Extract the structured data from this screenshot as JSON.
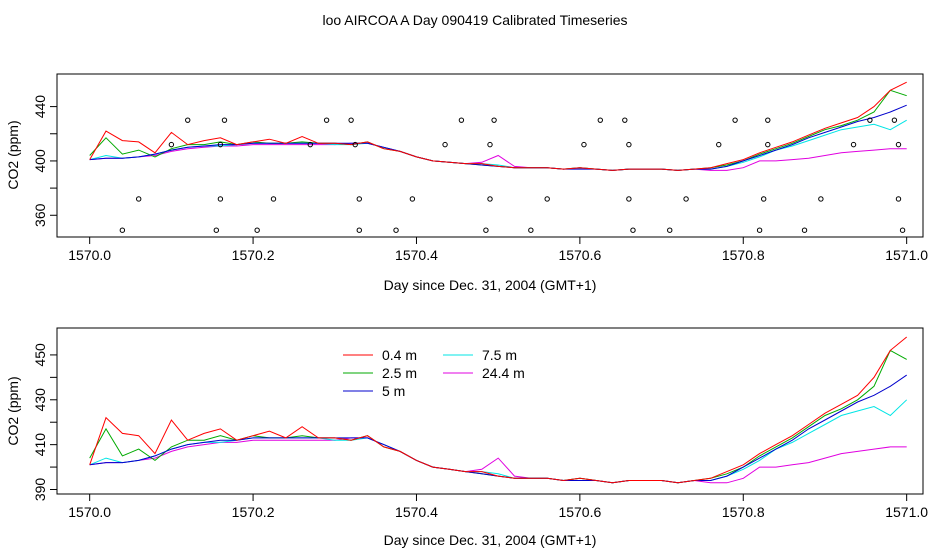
{
  "title": "loo AIRCOA A  Day 090419  Calibrated Timeseries",
  "colors": {
    "0.4 m": "#ff0000",
    "2.5 m": "#00aa00",
    "5 m": "#0000cc",
    "7.5 m": "#00e5e5",
    "24.4 m": "#e000e0",
    "points": "#000000"
  },
  "chart_data": [
    {
      "type": "line",
      "xlabel": "Day since Dec. 31, 2004 (GMT+1)",
      "ylabel": "CO2 (ppm)",
      "xlim": [
        1569.96,
        1571.02
      ],
      "ylim": [
        344,
        464
      ],
      "xticks": [
        1570.0,
        1570.2,
        1570.4,
        1570.6,
        1570.8,
        1571.0
      ],
      "xtick_labels": [
        "1570.0",
        "1570.2",
        "1570.4",
        "1570.6",
        "1570.8",
        "1571.0"
      ],
      "yticks": [
        360,
        400,
        440
      ],
      "ytick_labels": [
        "360",
        "400",
        "440"
      ],
      "yticks_minor": [
        380,
        420
      ],
      "x": [
        1570.0,
        1570.02,
        1570.04,
        1570.06,
        1570.08,
        1570.1,
        1570.12,
        1570.14,
        1570.16,
        1570.18,
        1570.2,
        1570.22,
        1570.24,
        1570.26,
        1570.28,
        1570.3,
        1570.32,
        1570.34,
        1570.36,
        1570.38,
        1570.4,
        1570.42,
        1570.44,
        1570.46,
        1570.48,
        1570.5,
        1570.52,
        1570.54,
        1570.56,
        1570.58,
        1570.6,
        1570.62,
        1570.64,
        1570.66,
        1570.68,
        1570.7,
        1570.72,
        1570.74,
        1570.76,
        1570.78,
        1570.8,
        1570.82,
        1570.84,
        1570.86,
        1570.88,
        1570.9,
        1570.92,
        1570.94,
        1570.96,
        1570.98,
        1571.0
      ],
      "series": [
        {
          "name": "0.4 m",
          "values": [
            401,
            422,
            415,
            414,
            406,
            421,
            412,
            415,
            417,
            412,
            414,
            416,
            413,
            418,
            413,
            413,
            412,
            414,
            409,
            407,
            403,
            400,
            399,
            398,
            398,
            396,
            395,
            395,
            395,
            394,
            395,
            394,
            393,
            394,
            394,
            394,
            393,
            394,
            395,
            398,
            401,
            406,
            410,
            414,
            419,
            424,
            428,
            432,
            440,
            452,
            458
          ]
        },
        {
          "name": "2.5 m",
          "values": [
            404,
            417,
            405,
            408,
            403,
            409,
            412,
            412,
            414,
            412,
            414,
            413,
            413,
            414,
            413,
            413,
            412,
            414,
            409,
            407,
            403,
            400,
            399,
            398,
            397,
            396,
            395,
            395,
            395,
            394,
            395,
            394,
            393,
            394,
            394,
            394,
            393,
            394,
            395,
            397,
            400,
            405,
            409,
            413,
            418,
            423,
            426,
            430,
            436,
            452,
            448
          ]
        },
        {
          "name": "5 m",
          "values": [
            401,
            402,
            402,
            403,
            405,
            408,
            410,
            411,
            412,
            412,
            413,
            413,
            413,
            413,
            413,
            413,
            413,
            413,
            410,
            407,
            403,
            400,
            399,
            398,
            397,
            396,
            395,
            395,
            395,
            394,
            394,
            394,
            393,
            394,
            394,
            394,
            393,
            394,
            394,
            396,
            400,
            404,
            408,
            412,
            417,
            421,
            425,
            429,
            432,
            436,
            441
          ]
        },
        {
          "name": "7.5 m",
          "values": [
            401,
            404,
            402,
            403,
            405,
            408,
            410,
            411,
            411,
            412,
            413,
            413,
            413,
            413,
            413,
            412,
            412,
            413,
            410,
            407,
            403,
            400,
            399,
            398,
            398,
            397,
            395,
            395,
            395,
            394,
            395,
            394,
            393,
            394,
            394,
            394,
            393,
            394,
            394,
            396,
            399,
            403,
            408,
            411,
            415,
            419,
            423,
            425,
            427,
            423,
            430
          ]
        },
        {
          "name": "24.4 m",
          "values": [
            401,
            402,
            402,
            403,
            404,
            407,
            409,
            410,
            411,
            411,
            412,
            412,
            412,
            412,
            412,
            412,
            413,
            413,
            410,
            407,
            403,
            400,
            399,
            398,
            399,
            404,
            396,
            395,
            395,
            394,
            395,
            394,
            393,
            394,
            394,
            394,
            393,
            394,
            393,
            393,
            395,
            400,
            400,
            401,
            402,
            404,
            406,
            407,
            408,
            409,
            409
          ]
        }
      ],
      "points": {
        "x": [
          1570.04,
          1570.06,
          1570.1,
          1570.12,
          1570.155,
          1570.16,
          1570.16,
          1570.165,
          1570.205,
          1570.225,
          1570.27,
          1570.29,
          1570.32,
          1570.325,
          1570.33,
          1570.33,
          1570.375,
          1570.395,
          1570.435,
          1570.455,
          1570.485,
          1570.49,
          1570.49,
          1570.495,
          1570.54,
          1570.56,
          1570.605,
          1570.625,
          1570.655,
          1570.66,
          1570.66,
          1570.665,
          1570.71,
          1570.73,
          1570.77,
          1570.79,
          1570.82,
          1570.825,
          1570.83,
          1570.83,
          1570.875,
          1570.895,
          1570.935,
          1570.955,
          1570.985,
          1570.99,
          1570.99,
          1570.995
        ],
        "y": [
          349,
          372,
          412,
          430,
          349,
          372,
          412,
          430,
          349,
          372,
          412,
          430,
          430,
          412,
          372,
          349,
          349,
          372,
          412,
          430,
          349,
          372,
          412,
          430,
          349,
          372,
          412,
          430,
          430,
          412,
          372,
          349,
          349,
          372,
          412,
          430,
          349,
          372,
          412,
          430,
          349,
          372,
          412,
          430,
          430,
          412,
          372,
          349
        ]
      }
    },
    {
      "type": "line",
      "xlabel": "Day since Dec. 31, 2004 (GMT+1)",
      "ylabel": "CO2 (ppm)",
      "xlim": [
        1569.96,
        1571.02
      ],
      "ylim": [
        388,
        462
      ],
      "xticks": [
        1570.0,
        1570.2,
        1570.4,
        1570.6,
        1570.8,
        1571.0
      ],
      "xtick_labels": [
        "1570.0",
        "1570.2",
        "1570.4",
        "1570.6",
        "1570.8",
        "1571.0"
      ],
      "yticks": [
        390,
        410,
        430,
        450
      ],
      "ytick_labels": [
        "390",
        "410",
        "430",
        "450"
      ],
      "yticks_minor": [
        400,
        420,
        440
      ],
      "legend": {
        "placement": "top-center",
        "entries": [
          "0.4 m",
          "2.5 m",
          "5 m",
          "7.5 m",
          "24.4 m"
        ]
      },
      "x": [
        1570.0,
        1570.02,
        1570.04,
        1570.06,
        1570.08,
        1570.1,
        1570.12,
        1570.14,
        1570.16,
        1570.18,
        1570.2,
        1570.22,
        1570.24,
        1570.26,
        1570.28,
        1570.3,
        1570.32,
        1570.34,
        1570.36,
        1570.38,
        1570.4,
        1570.42,
        1570.44,
        1570.46,
        1570.48,
        1570.5,
        1570.52,
        1570.54,
        1570.56,
        1570.58,
        1570.6,
        1570.62,
        1570.64,
        1570.66,
        1570.68,
        1570.7,
        1570.72,
        1570.74,
        1570.76,
        1570.78,
        1570.8,
        1570.82,
        1570.84,
        1570.86,
        1570.88,
        1570.9,
        1570.92,
        1570.94,
        1570.96,
        1570.98,
        1571.0
      ],
      "series": [
        {
          "name": "0.4 m",
          "values": [
            401,
            422,
            415,
            414,
            406,
            421,
            412,
            415,
            417,
            412,
            414,
            416,
            413,
            418,
            413,
            413,
            412,
            414,
            409,
            407,
            403,
            400,
            399,
            398,
            398,
            396,
            395,
            395,
            395,
            394,
            395,
            394,
            393,
            394,
            394,
            394,
            393,
            394,
            395,
            398,
            401,
            406,
            410,
            414,
            419,
            424,
            428,
            432,
            440,
            452,
            458
          ]
        },
        {
          "name": "2.5 m",
          "values": [
            404,
            417,
            405,
            408,
            403,
            409,
            412,
            412,
            414,
            412,
            414,
            413,
            413,
            414,
            413,
            413,
            412,
            414,
            409,
            407,
            403,
            400,
            399,
            398,
            397,
            396,
            395,
            395,
            395,
            394,
            395,
            394,
            393,
            394,
            394,
            394,
            393,
            394,
            395,
            397,
            400,
            405,
            409,
            413,
            418,
            423,
            426,
            430,
            436,
            452,
            448
          ]
        },
        {
          "name": "5 m",
          "values": [
            401,
            402,
            402,
            403,
            405,
            408,
            410,
            411,
            412,
            412,
            413,
            413,
            413,
            413,
            413,
            413,
            413,
            413,
            410,
            407,
            403,
            400,
            399,
            398,
            397,
            396,
            395,
            395,
            395,
            394,
            394,
            394,
            393,
            394,
            394,
            394,
            393,
            394,
            394,
            396,
            400,
            404,
            408,
            412,
            417,
            421,
            425,
            429,
            432,
            436,
            441
          ]
        },
        {
          "name": "7.5 m",
          "values": [
            401,
            404,
            402,
            403,
            405,
            408,
            410,
            411,
            411,
            412,
            413,
            413,
            413,
            413,
            413,
            412,
            412,
            413,
            410,
            407,
            403,
            400,
            399,
            398,
            398,
            397,
            395,
            395,
            395,
            394,
            395,
            394,
            393,
            394,
            394,
            394,
            393,
            394,
            394,
            396,
            399,
            403,
            408,
            411,
            415,
            419,
            423,
            425,
            427,
            423,
            430
          ]
        },
        {
          "name": "24.4 m",
          "values": [
            401,
            402,
            402,
            403,
            404,
            407,
            409,
            410,
            411,
            411,
            412,
            412,
            412,
            412,
            412,
            412,
            413,
            413,
            410,
            407,
            403,
            400,
            399,
            398,
            399,
            404,
            396,
            395,
            395,
            394,
            395,
            394,
            393,
            394,
            394,
            394,
            393,
            394,
            393,
            393,
            395,
            400,
            400,
            401,
            402,
            404,
            406,
            407,
            408,
            409,
            409
          ]
        }
      ]
    }
  ]
}
